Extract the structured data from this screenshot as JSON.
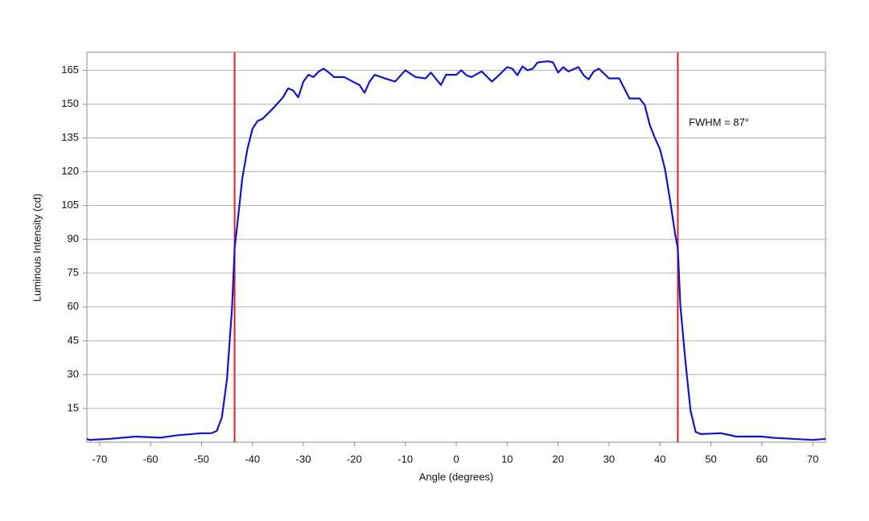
{
  "chart_data": {
    "type": "line",
    "xlabel": "Angle (degrees)",
    "ylabel": "Luminous Intensity (cd)",
    "annotation": "FWHM = 87°",
    "xlim": [
      -72.5,
      72.5
    ],
    "ylim": [
      0,
      173
    ],
    "xticks": [
      -70,
      -60,
      -50,
      -40,
      -30,
      -20,
      -10,
      0,
      10,
      20,
      30,
      40,
      50,
      60,
      70
    ],
    "yticks": [
      15,
      30,
      45,
      60,
      75,
      90,
      105,
      120,
      135,
      150,
      165
    ],
    "grid": true,
    "vlines": [
      -43.5,
      43.5
    ],
    "vline_color": "#e02020",
    "x": [
      -72.5,
      -72,
      -68,
      -63,
      -58,
      -55,
      -50,
      -48,
      -47,
      -46,
      -45,
      -44,
      -43.5,
      -43,
      -42,
      -41,
      -40,
      -39,
      -38,
      -36,
      -34,
      -33,
      -32,
      -31,
      -30,
      -29,
      -28,
      -27,
      -26,
      -25,
      -24,
      -22,
      -20,
      -19,
      -18,
      -17,
      -16,
      -14,
      -12,
      -10,
      -8,
      -6,
      -5,
      -3,
      -2,
      0,
      1,
      2,
      3,
      5,
      7,
      8,
      10,
      11,
      12,
      13,
      14,
      15,
      16,
      18,
      19,
      20,
      21,
      22,
      24,
      25,
      26,
      27,
      28,
      30,
      32,
      34,
      36,
      37,
      38,
      39,
      40,
      41,
      42,
      43,
      43.5,
      44,
      45,
      46,
      47,
      48,
      52,
      55,
      60,
      62,
      66,
      70,
      72.5
    ],
    "series": [
      {
        "name": "Luminous Intensity",
        "color": "#1414c8",
        "values": [
          1.5,
          1,
          1.5,
          2.5,
          2,
          3,
          4,
          4,
          5,
          11,
          28,
          60,
          86,
          96,
          117,
          130,
          139,
          142.5,
          143.5,
          148,
          153,
          157,
          156,
          153,
          160,
          163,
          162,
          164.5,
          165.7,
          164,
          162,
          162,
          159.6,
          158.5,
          155,
          160,
          163,
          161.4,
          160,
          165,
          162,
          161.4,
          164,
          158.5,
          163,
          163,
          165,
          162.8,
          162,
          164.5,
          160,
          162,
          166.4,
          165.7,
          162.8,
          166.7,
          165,
          165.7,
          168.5,
          169,
          168.5,
          164,
          166.4,
          164.5,
          166.4,
          162.8,
          161,
          164.5,
          165.7,
          161.4,
          161.4,
          152.5,
          152.5,
          149.6,
          140.7,
          135,
          130,
          121,
          107,
          92,
          86,
          60.6,
          35.6,
          14,
          4.6,
          3.6,
          4,
          2.5,
          2.5,
          2,
          1.5,
          1,
          1.5
        ]
      }
    ]
  }
}
